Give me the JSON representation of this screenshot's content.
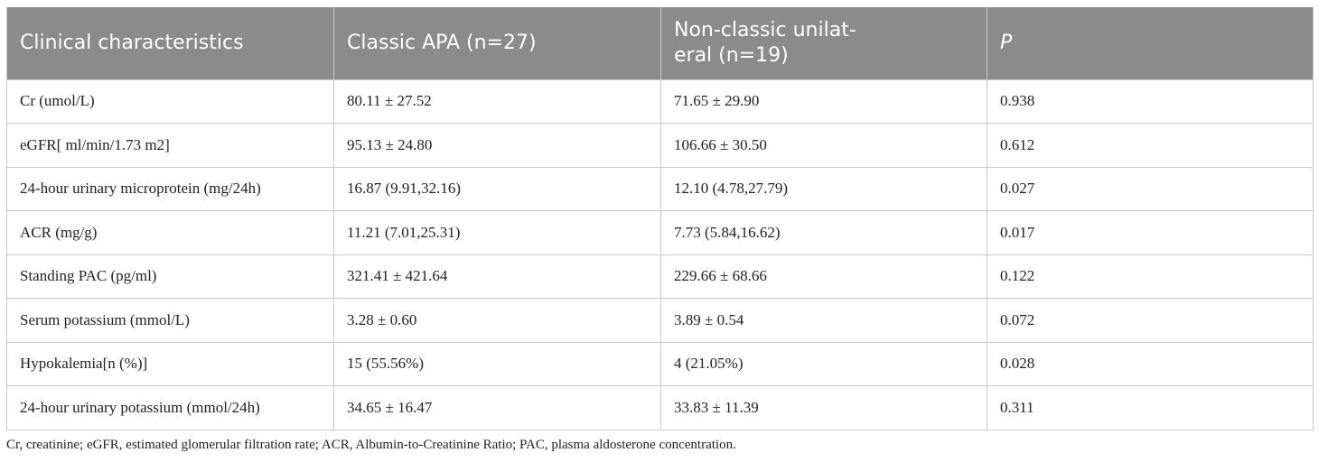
{
  "table": {
    "headers": [
      "Clinical characteristics",
      "Classic APA (n=27)",
      "Non-classic unilat-\neral (n=19)",
      "P"
    ],
    "header_line_3a": "Non-classic unilat-",
    "header_line_3b": "eral (n=19)",
    "rows": [
      [
        "Cr (umol/L)",
        "80.11 ± 27.52",
        "71.65 ± 29.90",
        "0.938"
      ],
      [
        "eGFR[ ml/min/1.73 m2]",
        "95.13 ± 24.80",
        "106.66 ± 30.50",
        "0.612"
      ],
      [
        "24-hour urinary microprotein (mg/24h)",
        "16.87 (9.91,32.16)",
        "12.10 (4.78,27.79)",
        "0.027"
      ],
      [
        "ACR (mg/g)",
        "11.21 (7.01,25.31)",
        "7.73 (5.84,16.62)",
        "0.017"
      ],
      [
        "Standing PAC (pg/ml)",
        "321.41 ± 421.64",
        "229.66 ± 68.66",
        "0.122"
      ],
      [
        "Serum potassium (mmol/L)",
        "3.28 ± 0.60",
        "3.89 ± 0.54",
        "0.072"
      ],
      [
        "Hypokalemia[n (%)]",
        "15 (55.56%)",
        "4 (21.05%)",
        "0.028"
      ],
      [
        "24-hour urinary potassium (mmol/24h)",
        "34.65 ± 16.47",
        "33.83 ± 11.39",
        "0.311"
      ]
    ]
  },
  "footnote": "Cr, creatinine; eGFR, estimated glomerular filtration rate; ACR, Albumin-to-Creatinine Ratio; PAC, plasma aldosterone concentration.",
  "colors": {
    "header_bg": "#8b8b8b",
    "header_text": "#ffffff",
    "border": "#c8c8c8"
  }
}
